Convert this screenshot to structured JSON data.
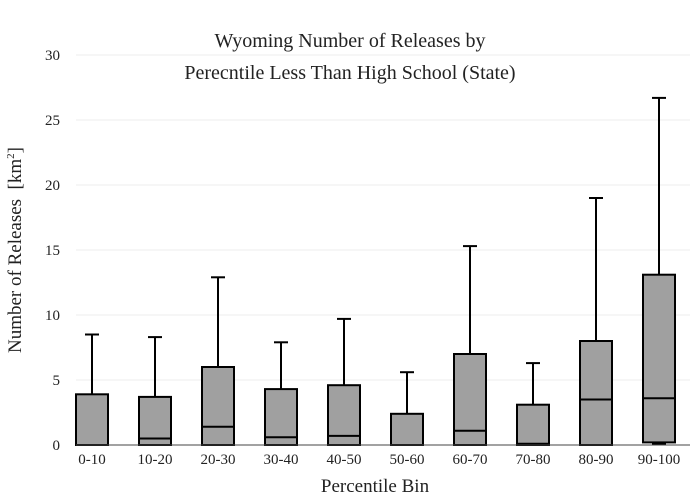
{
  "chart_data": {
    "type": "box",
    "title_lines": [
      "Wyoming Number of Releases by",
      "Perecntile Less Than High School (State)"
    ],
    "xlabel": "Percentile Bin",
    "ylabel": "Number of Releases",
    "ylabel_unit": "[km",
    "ylabel_unit_sup": "2",
    "ylabel_unit_close": "]",
    "ylim": [
      0,
      30
    ],
    "yticks": [
      0,
      5,
      10,
      15,
      20,
      25,
      30
    ],
    "grid": true,
    "categories": [
      "0-10",
      "10-20",
      "20-30",
      "30-40",
      "40-50",
      "50-60",
      "60-70",
      "70-80",
      "80-90",
      "90-100"
    ],
    "boxes": [
      {
        "min": 0,
        "q1": 0,
        "median": 0,
        "q3": 3.9,
        "max": 8.5
      },
      {
        "min": 0,
        "q1": 0,
        "median": 0.5,
        "q3": 3.7,
        "max": 8.3
      },
      {
        "min": 0,
        "q1": 0,
        "median": 1.4,
        "q3": 6.0,
        "max": 12.9
      },
      {
        "min": 0,
        "q1": 0,
        "median": 0.6,
        "q3": 4.3,
        "max": 7.9
      },
      {
        "min": 0,
        "q1": 0,
        "median": 0.7,
        "q3": 4.6,
        "max": 9.7
      },
      {
        "min": 0,
        "q1": 0,
        "median": 0,
        "q3": 2.4,
        "max": 5.6
      },
      {
        "min": 0,
        "q1": 0,
        "median": 1.1,
        "q3": 7.0,
        "max": 15.3
      },
      {
        "min": 0,
        "q1": 0,
        "median": 0.1,
        "q3": 3.1,
        "max": 6.3
      },
      {
        "min": 0,
        "q1": 0,
        "median": 3.5,
        "q3": 8.0,
        "max": 19.0
      },
      {
        "min": 0.1,
        "q1": 0.2,
        "median": 3.6,
        "q3": 13.1,
        "max": 26.7
      }
    ],
    "colors": {
      "box_fill": "#a0a0a0",
      "line": "#000000",
      "grid": "#eeeeee",
      "axis": "#444444"
    }
  }
}
